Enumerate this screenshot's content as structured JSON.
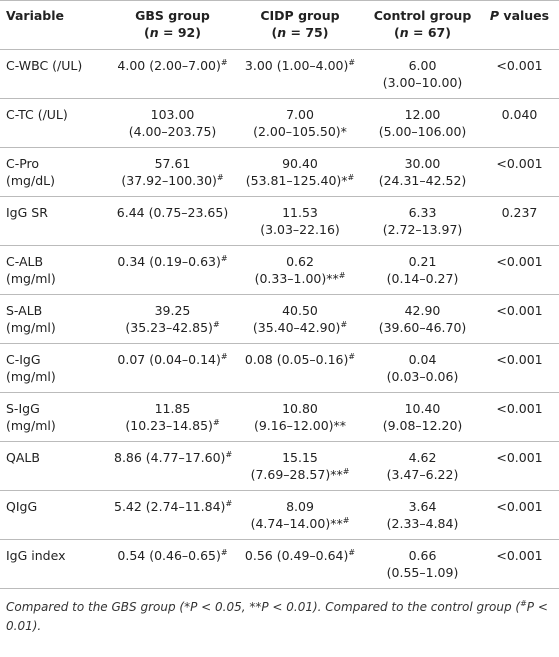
{
  "table": {
    "header": [
      [
        [
          "Variable"
        ]
      ],
      [
        [
          "GBS group"
        ],
        [
          "(",
          {
            "text": "n",
            "style": "italic"
          },
          " = 92)"
        ]
      ],
      [
        [
          "CIDP group"
        ],
        [
          "(",
          {
            "text": "n",
            "style": "italic"
          },
          " = 75)"
        ]
      ],
      [
        [
          "Control group"
        ],
        [
          "(",
          {
            "text": "n",
            "style": "italic"
          },
          " = 67)"
        ]
      ],
      [
        [
          {
            "text": "P",
            "style": "italic"
          },
          " values"
        ]
      ]
    ],
    "rows": [
      [
        [
          [
            "C-WBC (/UL)"
          ]
        ],
        [
          [
            "4.00 (2.00–7.00)",
            {
              "text": "#",
              "style": "sup"
            }
          ]
        ],
        [
          [
            "3.00 (1.00–4.00)",
            {
              "text": "#",
              "style": "sup"
            }
          ]
        ],
        [
          [
            "6.00"
          ],
          [
            "(3.00–10.00)"
          ]
        ],
        [
          [
            "<0.001"
          ]
        ]
      ],
      [
        [
          [
            "C-TC (/UL)"
          ]
        ],
        [
          [
            "103.00"
          ],
          [
            "(4.00–203.75)"
          ]
        ],
        [
          [
            "7.00"
          ],
          [
            "(2.00–105.50)*"
          ]
        ],
        [
          [
            "12.00"
          ],
          [
            "(5.00–106.00)"
          ]
        ],
        [
          [
            "0.040"
          ]
        ]
      ],
      [
        [
          [
            "C-Pro"
          ],
          [
            "(mg/dL)"
          ]
        ],
        [
          [
            "57.61"
          ],
          [
            "(37.92–100.30)",
            {
              "text": "#",
              "style": "sup"
            }
          ]
        ],
        [
          [
            "90.40"
          ],
          [
            "(53.81–125.40)*",
            {
              "text": "#",
              "style": "sup"
            }
          ]
        ],
        [
          [
            "30.00"
          ],
          [
            "(24.31–42.52)"
          ]
        ],
        [
          [
            "<0.001"
          ]
        ]
      ],
      [
        [
          [
            "IgG SR"
          ]
        ],
        [
          [
            "6.44 (0.75–23.65)"
          ]
        ],
        [
          [
            "11.53"
          ],
          [
            "(3.03–22.16)"
          ]
        ],
        [
          [
            "6.33"
          ],
          [
            "(2.72–13.97)"
          ]
        ],
        [
          [
            "0.237"
          ]
        ]
      ],
      [
        [
          [
            "C-ALB"
          ],
          [
            "(mg/ml)"
          ]
        ],
        [
          [
            "0.34 (0.19–0.63)",
            {
              "text": "#",
              "style": "sup"
            }
          ]
        ],
        [
          [
            "0.62"
          ],
          [
            "(0.33–1.00)**",
            {
              "text": "#",
              "style": "sup"
            }
          ]
        ],
        [
          [
            "0.21"
          ],
          [
            "(0.14–0.27)"
          ]
        ],
        [
          [
            "<0.001"
          ]
        ]
      ],
      [
        [
          [
            "S-ALB"
          ],
          [
            "(mg/ml)"
          ]
        ],
        [
          [
            "39.25"
          ],
          [
            "(35.23–42.85)",
            {
              "text": "#",
              "style": "sup"
            }
          ]
        ],
        [
          [
            "40.50"
          ],
          [
            "(35.40–42.90)",
            {
              "text": "#",
              "style": "sup"
            }
          ]
        ],
        [
          [
            "42.90"
          ],
          [
            "(39.60–46.70)"
          ]
        ],
        [
          [
            "<0.001"
          ]
        ]
      ],
      [
        [
          [
            "C-IgG"
          ],
          [
            "(mg/ml)"
          ]
        ],
        [
          [
            "0.07 (0.04–0.14)",
            {
              "text": "#",
              "style": "sup"
            }
          ]
        ],
        [
          [
            "0.08 (0.05–0.16)",
            {
              "text": "#",
              "style": "sup"
            }
          ]
        ],
        [
          [
            "0.04"
          ],
          [
            "(0.03–0.06)"
          ]
        ],
        [
          [
            "<0.001"
          ]
        ]
      ],
      [
        [
          [
            "S-IgG"
          ],
          [
            "(mg/ml)"
          ]
        ],
        [
          [
            "11.85"
          ],
          [
            "(10.23–14.85)",
            {
              "text": "#",
              "style": "sup"
            }
          ]
        ],
        [
          [
            "10.80"
          ],
          [
            "(9.16–12.00)**"
          ]
        ],
        [
          [
            "10.40"
          ],
          [
            "(9.08–12.20)"
          ]
        ],
        [
          [
            "<0.001"
          ]
        ]
      ],
      [
        [
          [
            "QALB"
          ]
        ],
        [
          [
            "8.86 (4.77–17.60)",
            {
              "text": "#",
              "style": "sup"
            }
          ]
        ],
        [
          [
            "15.15"
          ],
          [
            "(7.69–28.57)**",
            {
              "text": "#",
              "style": "sup"
            }
          ]
        ],
        [
          [
            "4.62"
          ],
          [
            "(3.47–6.22)"
          ]
        ],
        [
          [
            "<0.001"
          ]
        ]
      ],
      [
        [
          [
            "QIgG"
          ]
        ],
        [
          [
            "5.42 (2.74–11.84)",
            {
              "text": "#",
              "style": "sup"
            }
          ]
        ],
        [
          [
            "8.09"
          ],
          [
            "(4.74–14.00)**",
            {
              "text": "#",
              "style": "sup"
            }
          ]
        ],
        [
          [
            "3.64"
          ],
          [
            "(2.33–4.84)"
          ]
        ],
        [
          [
            "<0.001"
          ]
        ]
      ],
      [
        [
          [
            "IgG index"
          ]
        ],
        [
          [
            "0.54 (0.46–0.65)",
            {
              "text": "#",
              "style": "sup"
            }
          ]
        ],
        [
          [
            "0.56 (0.49–0.64)",
            {
              "text": "#",
              "style": "sup"
            }
          ]
        ],
        [
          [
            "0.66"
          ],
          [
            "(0.55–1.09)"
          ]
        ],
        [
          [
            "<0.001"
          ]
        ]
      ]
    ],
    "footnote": [
      "Compared to the GBS group (*P < 0.05, **P < 0.01). Compared to the control group (",
      {
        "text": "#",
        "style": "sup"
      },
      "P < 0.01)."
    ]
  }
}
